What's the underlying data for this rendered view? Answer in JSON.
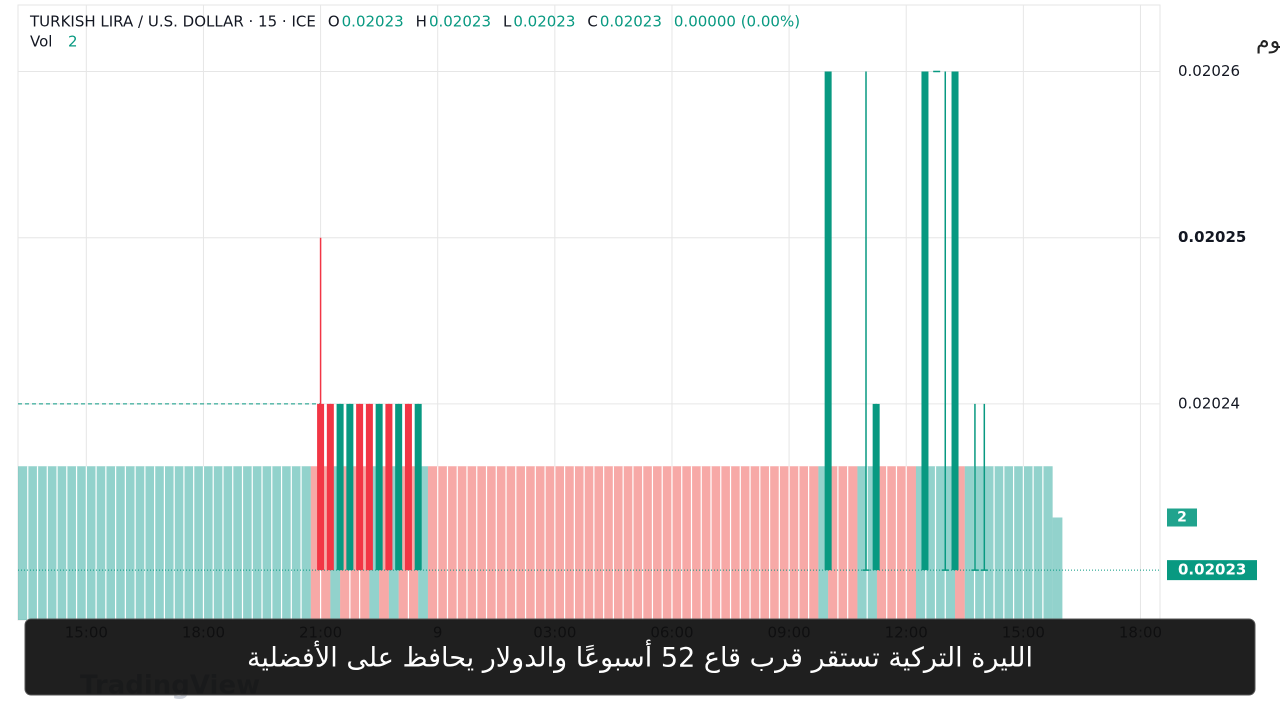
{
  "chart_data": {
    "type": "candlestick",
    "header": {
      "symbol": "TURKISH LIRA / U.S. DOLLAR · 15 · ICE",
      "ohlc": [
        {
          "label": "O",
          "value": 0.02023
        },
        {
          "label": "H",
          "value": 0.02023
        },
        {
          "label": "L",
          "value": 0.02023
        },
        {
          "label": "C",
          "value": 0.02023
        }
      ],
      "change": "0.00000 (0.00%)",
      "volume_label": "Vol",
      "volume": 2
    },
    "xlim": [
      13.25,
      42.5
    ],
    "xticks": [
      {
        "value": 15,
        "label": "15:00"
      },
      {
        "value": 18,
        "label": "18:00"
      },
      {
        "value": 21,
        "label": "21:00"
      },
      {
        "value": 24,
        "label": "9"
      },
      {
        "value": 27,
        "label": "03:00"
      },
      {
        "value": 30,
        "label": "06:00"
      },
      {
        "value": 33,
        "label": "09:00"
      },
      {
        "value": 36,
        "label": "12:00"
      },
      {
        "value": 39,
        "label": "15:00"
      },
      {
        "value": 42,
        "label": "18:00"
      }
    ],
    "ylim": [
      0.020227,
      0.020264
    ],
    "yticks": [
      0.02026,
      0.02025,
      0.02024
    ],
    "last_price": 0.02023,
    "prev_close": 0.02024,
    "grid": true,
    "up_color": "#089981",
    "down_color": "#f23645",
    "candles": {
      "x": [
        21.0,
        21.25,
        21.5,
        21.75,
        22.0,
        22.25,
        22.5,
        22.75,
        23.0,
        23.25,
        23.5,
        34.0,
        34.97,
        35.23,
        36.48,
        36.78,
        37.0,
        37.25,
        37.76,
        38.0
      ],
      "open": [
        0.02024,
        0.02024,
        0.02023,
        0.02023,
        0.02024,
        0.02024,
        0.02023,
        0.02024,
        0.02023,
        0.02024,
        0.02023,
        0.02023,
        0.02023,
        0.02023,
        0.02023,
        0.02026,
        0.02023,
        0.02023,
        0.02023,
        0.02023
      ],
      "high": [
        0.02025,
        0.02024,
        0.02024,
        0.02024,
        0.02024,
        0.02024,
        0.02024,
        0.02024,
        0.02024,
        0.02024,
        0.02024,
        0.02026,
        0.02026,
        0.02024,
        0.02026,
        0.02026,
        0.02026,
        0.02026,
        0.02024,
        0.02024
      ],
      "low": [
        0.02023,
        0.02023,
        0.02023,
        0.02023,
        0.02023,
        0.02023,
        0.02023,
        0.02023,
        0.02023,
        0.02023,
        0.02023,
        0.02023,
        0.02023,
        0.02023,
        0.02023,
        0.02026,
        0.02023,
        0.02023,
        0.02023,
        0.02023
      ],
      "close": [
        0.02023,
        0.02023,
        0.02024,
        0.02024,
        0.02023,
        0.02023,
        0.02024,
        0.02023,
        0.02024,
        0.02023,
        0.02024,
        0.02026,
        0.02023,
        0.02024,
        0.02026,
        0.02026,
        0.02023,
        0.02026,
        0.02023,
        0.02023
      ]
    },
    "volume": {
      "ylim": [
        0,
        12
      ],
      "bins": [
        13.25,
        20.75,
        21.25,
        21.5,
        22.25,
        22.5,
        22.75,
        23.0,
        23.5,
        23.75,
        33.75,
        34.0,
        34.75,
        35.25,
        36.25,
        37.25,
        37.5,
        39.75,
        40.0
      ],
      "values": [
        3,
        3,
        3,
        3,
        3,
        3,
        3,
        3,
        3,
        3,
        3,
        3,
        3,
        3,
        3,
        3,
        3,
        2
      ],
      "colors": [
        "#26a69a",
        "#ef5350",
        "#26a69a",
        "#ef5350",
        "#26a69a",
        "#ef5350",
        "#26a69a",
        "#ef5350",
        "#26a69a",
        "#ef5350",
        "#26a69a",
        "#ef5350",
        "#26a69a",
        "#ef5350",
        "#26a69a",
        "#ef5350",
        "#26a69a",
        "#26a69a"
      ]
    },
    "watermark": "TradingView"
  },
  "brand": "أحداث اليوم",
  "caption": "الليرة التركية تستقر قرب قاع 52 أسبوعًا والدولار يحافظ على الأفضلية"
}
